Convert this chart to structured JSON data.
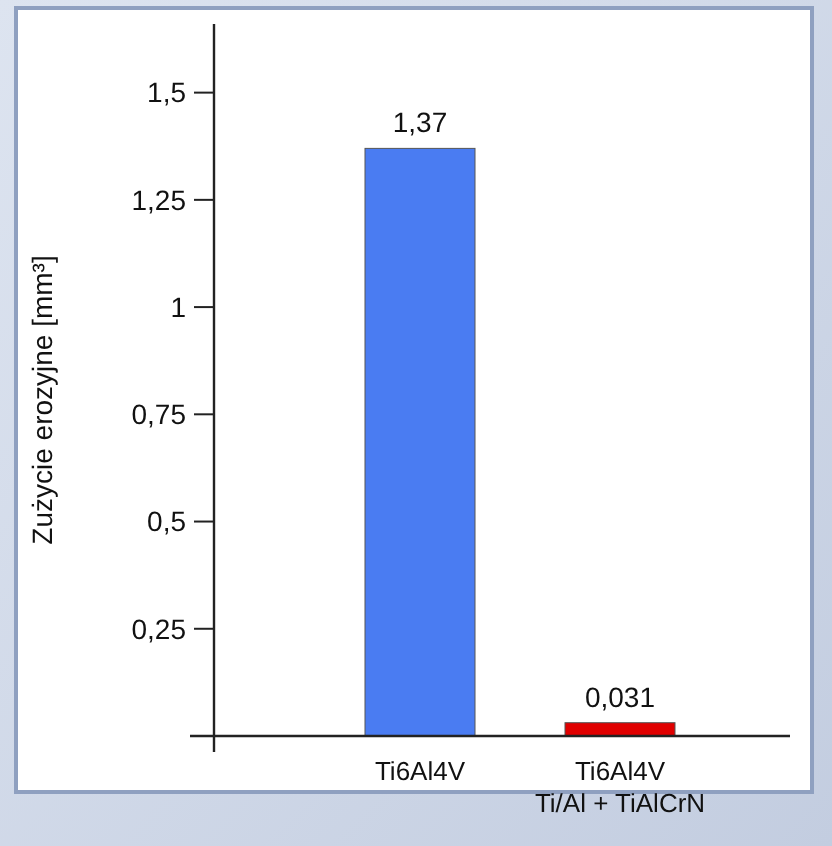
{
  "chart_data": {
    "type": "bar",
    "ylabel": "Zużycie erozyjne [mm³]",
    "categories": [
      "Ti6Al4V",
      "Ti6Al4V\nTi/Al + TiAlCrN"
    ],
    "values": [
      1.37,
      0.031
    ],
    "colors": [
      "#4a7cf2",
      "#e00000"
    ],
    "value_labels": [
      "1,37",
      "0,031"
    ],
    "ylim": [
      0,
      1.66
    ],
    "yticks": [
      {
        "value": 0.25,
        "label": "0,25"
      },
      {
        "value": 0.5,
        "label": "0,5"
      },
      {
        "value": 0.75,
        "label": "0,75"
      },
      1,
      {
        "value": 1.25,
        "label": "1,25"
      },
      {
        "value": 1.5,
        "label": "1,5"
      }
    ],
    "grid": false
  }
}
